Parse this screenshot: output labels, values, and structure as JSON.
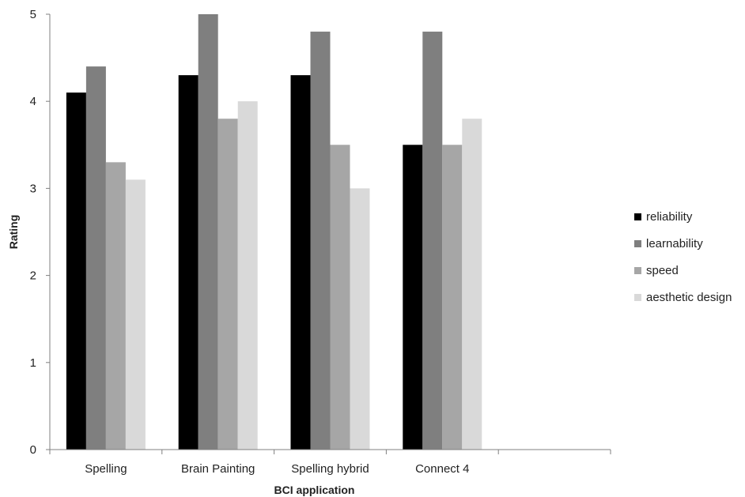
{
  "chart_data": {
    "type": "bar",
    "xlabel": "BCI application",
    "ylabel": "Rating",
    "ylim": [
      0,
      5
    ],
    "yticks": [
      "0",
      "1",
      "2",
      "3",
      "4",
      "5"
    ],
    "grid": false,
    "legend_position": "right",
    "categories": [
      "Spelling",
      "Brain Painting",
      "Spelling hybrid",
      "Connect 4",
      ""
    ],
    "series": [
      {
        "name": "reliability",
        "color": "#000000",
        "values": [
          4.1,
          4.3,
          4.3,
          3.5,
          null
        ]
      },
      {
        "name": "learnability",
        "color": "#7f7f7f",
        "values": [
          4.4,
          5.0,
          4.8,
          4.8,
          null
        ]
      },
      {
        "name": "speed",
        "color": "#a6a6a6",
        "values": [
          3.3,
          3.8,
          3.5,
          3.5,
          null
        ]
      },
      {
        "name": "aesthetic design",
        "color": "#d9d9d9",
        "values": [
          3.1,
          4.0,
          3.0,
          3.8,
          null
        ]
      }
    ]
  }
}
